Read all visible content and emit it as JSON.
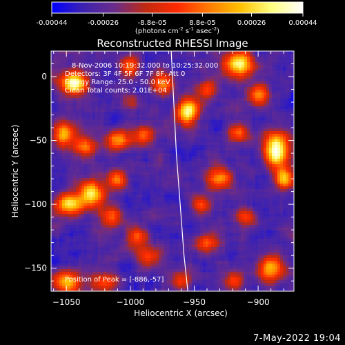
{
  "colors": {
    "background": "#000000",
    "foreground": "#ffffff",
    "colormap_stops": [
      "#0000ff",
      "#3d22b0",
      "#6a2c8a",
      "#c02a10",
      "#ff2a00",
      "#ff7a00",
      "#ffc000",
      "#ffff80",
      "#ffffff"
    ]
  },
  "colorbar": {
    "tick_labels": [
      "-0.00044",
      "-0.00026",
      "-8.8e-05",
      "8.8e-05",
      "0.00026",
      "0.00044"
    ],
    "tick_values": [
      -0.00044,
      -0.00026,
      -8.8e-05,
      8.8e-05,
      0.00026,
      0.00044
    ],
    "range": [
      -0.00044,
      0.00044
    ],
    "units_prefix": "(photons cm",
    "units_exp1": "-2",
    "units_mid1": " s",
    "units_exp2": "-1",
    "units_mid2": " asec",
    "units_exp3": "-2",
    "units_suffix": ")"
  },
  "chart_data": {
    "type": "heatmap",
    "title": "Reconstructed RHESSI Image",
    "xlabel": "Heliocentric X (arcsec)",
    "ylabel": "Heliocentric Y (arcsec)",
    "xlim": [
      -1062,
      -872
    ],
    "ylim": [
      -168,
      20
    ],
    "x_ticks": [
      -1050,
      -1000,
      -950,
      -900
    ],
    "x_tick_labels": [
      "−1050",
      "−1000",
      "−950",
      "−900"
    ],
    "y_ticks": [
      0,
      -50,
      -100,
      -150
    ],
    "y_tick_labels": [
      "0",
      "−50",
      "−100",
      "−150"
    ],
    "annotations": [
      "8-Nov-2006 10:19:32.000 to 10:25:32.000",
      "Detectors: 3F 4F 5F 6F 7F 8F, Att 0",
      "Energy Range: 25.0 - 50.0 keV",
      "Clean    Total counts: 2.01E+04"
    ],
    "peak_label": "Position of Peak = [-886,-57]",
    "peak": [
      -886,
      -57
    ],
    "limb": [
      [
        -968,
        20
      ],
      [
        -966,
        -20
      ],
      [
        -964,
        -60
      ],
      [
        -961,
        -100
      ],
      [
        -958,
        -140
      ],
      [
        -955,
        -168
      ]
    ],
    "sources": [
      {
        "x": -1044,
        "y": -5,
        "sx": 7,
        "sy": 6,
        "a": 0.95
      },
      {
        "x": -1052,
        "y": -45,
        "sx": 6,
        "sy": 7,
        "a": 0.7
      },
      {
        "x": -1035,
        "y": -55,
        "sx": 6,
        "sy": 5,
        "a": 0.55
      },
      {
        "x": -1010,
        "y": -50,
        "sx": 7,
        "sy": 6,
        "a": 0.6
      },
      {
        "x": -990,
        "y": -45,
        "sx": 6,
        "sy": 5,
        "a": 0.45
      },
      {
        "x": -1048,
        "y": -100,
        "sx": 8,
        "sy": 6,
        "a": 0.75
      },
      {
        "x": -1030,
        "y": -92,
        "sx": 7,
        "sy": 7,
        "a": 0.8
      },
      {
        "x": -1010,
        "y": -80,
        "sx": 5,
        "sy": 5,
        "a": 0.55
      },
      {
        "x": -1015,
        "y": -110,
        "sx": 6,
        "sy": 6,
        "a": 0.45
      },
      {
        "x": -995,
        "y": -125,
        "sx": 6,
        "sy": 5,
        "a": 0.45
      },
      {
        "x": -1050,
        "y": -160,
        "sx": 8,
        "sy": 6,
        "a": 0.7
      },
      {
        "x": -1020,
        "y": -160,
        "sx": 7,
        "sy": 5,
        "a": 0.45
      },
      {
        "x": -985,
        "y": -140,
        "sx": 8,
        "sy": 6,
        "a": 0.45
      },
      {
        "x": -1000,
        "y": 8,
        "sx": 6,
        "sy": 6,
        "a": 0.5
      },
      {
        "x": -975,
        "y": -5,
        "sx": 6,
        "sy": 6,
        "a": 0.5
      },
      {
        "x": -955,
        "y": -27,
        "sx": 6,
        "sy": 7,
        "a": 0.85
      },
      {
        "x": -940,
        "y": -10,
        "sx": 5,
        "sy": 5,
        "a": 0.45
      },
      {
        "x": -915,
        "y": 10,
        "sx": 8,
        "sy": 7,
        "a": 0.85
      },
      {
        "x": -900,
        "y": -15,
        "sx": 6,
        "sy": 6,
        "a": 0.55
      },
      {
        "x": -915,
        "y": -45,
        "sx": 6,
        "sy": 5,
        "a": 0.5
      },
      {
        "x": -930,
        "y": -80,
        "sx": 7,
        "sy": 6,
        "a": 0.65
      },
      {
        "x": -945,
        "y": -100,
        "sx": 6,
        "sy": 5,
        "a": 0.5
      },
      {
        "x": -910,
        "y": -110,
        "sx": 6,
        "sy": 5,
        "a": 0.45
      },
      {
        "x": -940,
        "y": -130,
        "sx": 6,
        "sy": 5,
        "a": 0.5
      },
      {
        "x": -886,
        "y": -57,
        "sx": 7,
        "sy": 9,
        "a": 1.0
      },
      {
        "x": -880,
        "y": -80,
        "sx": 5,
        "sy": 6,
        "a": 0.65
      },
      {
        "x": -890,
        "y": -150,
        "sx": 7,
        "sy": 7,
        "a": 0.7
      },
      {
        "x": -918,
        "y": -160,
        "sx": 5,
        "sy": 5,
        "a": 0.45
      },
      {
        "x": -960,
        "y": -160,
        "sx": 6,
        "sy": 5,
        "a": 0.4
      },
      {
        "x": -1000,
        "y": -20,
        "sx": 5,
        "sy": 5,
        "a": 0.3
      }
    ],
    "grid": false
  },
  "timestamp": "7-May-2022 19:04"
}
